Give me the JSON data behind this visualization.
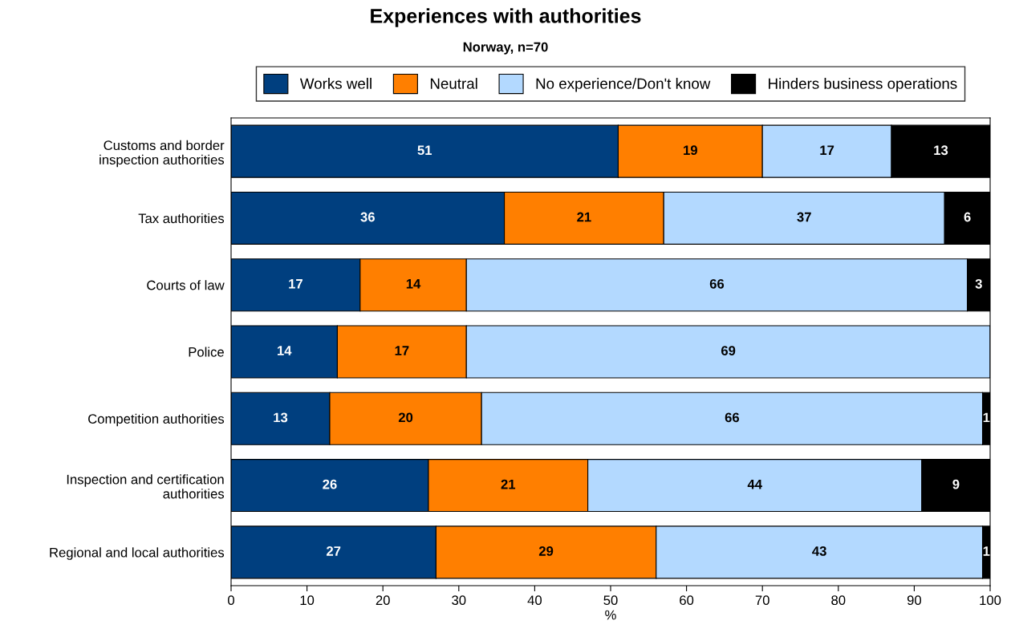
{
  "chart_data": {
    "type": "bar",
    "orientation": "horizontal",
    "stacked": true,
    "title": "Experiences with authorities",
    "subtitle": "Norway, n=70",
    "xlabel": "%",
    "categories": [
      "Customs and border\ninspection authorities",
      "Tax authorities",
      "Courts of law",
      "Police",
      "Competition authorities",
      "Inspection and certification\nauthorities",
      "Regional and local authorities"
    ],
    "series": [
      {
        "name": "Works well",
        "color": "#003f7f",
        "values": [
          51,
          36,
          17,
          14,
          13,
          26,
          27
        ]
      },
      {
        "name": "Neutral",
        "color": "#ff7f00",
        "values": [
          19,
          21,
          14,
          17,
          20,
          21,
          29
        ]
      },
      {
        "name": "No experience/Don't know",
        "color": "#b3d9ff",
        "values": [
          17,
          37,
          66,
          69,
          66,
          44,
          43
        ]
      },
      {
        "name": "Hinders business operations",
        "color": "#000000",
        "values": [
          13,
          6,
          3,
          null,
          1,
          9,
          1
        ]
      }
    ],
    "xlim": [
      0,
      100
    ],
    "xticks": [
      0,
      10,
      20,
      30,
      40,
      50,
      60,
      70,
      80,
      90,
      100
    ],
    "data_labels": true,
    "legend": "top"
  }
}
